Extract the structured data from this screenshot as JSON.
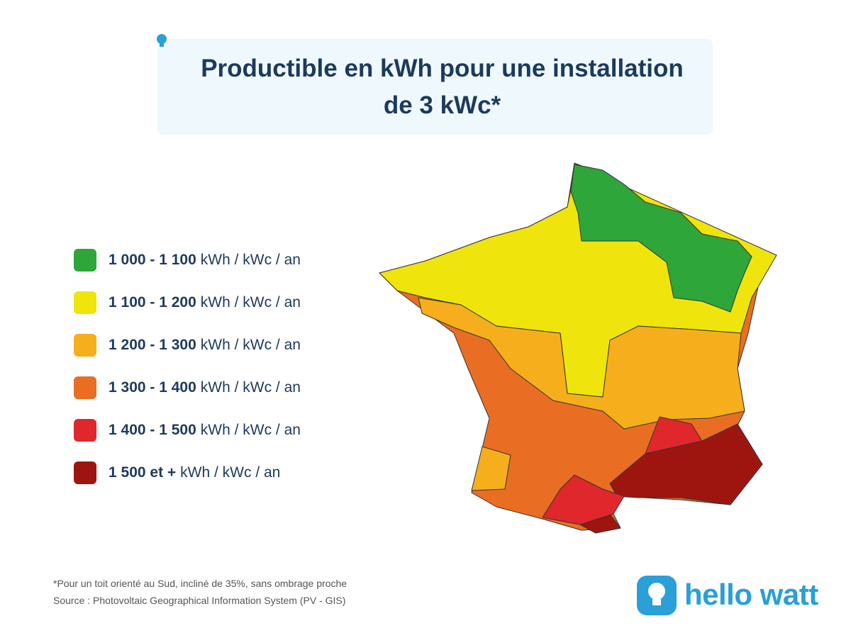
{
  "header": {
    "title": "Productible en kWh pour une installation de 3 kWc*"
  },
  "legend": {
    "items": [
      {
        "range": "1 000 - 1 100",
        "unit": "kWh / kWc / an",
        "color": "#2ea63a"
      },
      {
        "range": "1 100 - 1 200",
        "unit": "kWh / kWc / an",
        "color": "#efe40c"
      },
      {
        "range": "1 200 - 1 300",
        "unit": "kWh / kWc / an",
        "color": "#f6ae1d"
      },
      {
        "range": "1 300 - 1 400",
        "unit": "kWh / kWc / an",
        "color": "#e96e23"
      },
      {
        "range": "1 400 - 1 500",
        "unit": "kWh / kWc / an",
        "color": "#e0272b"
      },
      {
        "range": "1 500 et +",
        "unit": "kWh / kWc / an",
        "color": "#9e1510"
      }
    ]
  },
  "footer": {
    "notes": [
      "*Pour un toit orienté au Sud, incliné de 35%, sans ombrage proche",
      "Source : Photovoltaic Geographical Information System (PV - GIS)"
    ],
    "brand": "hello watt"
  }
}
